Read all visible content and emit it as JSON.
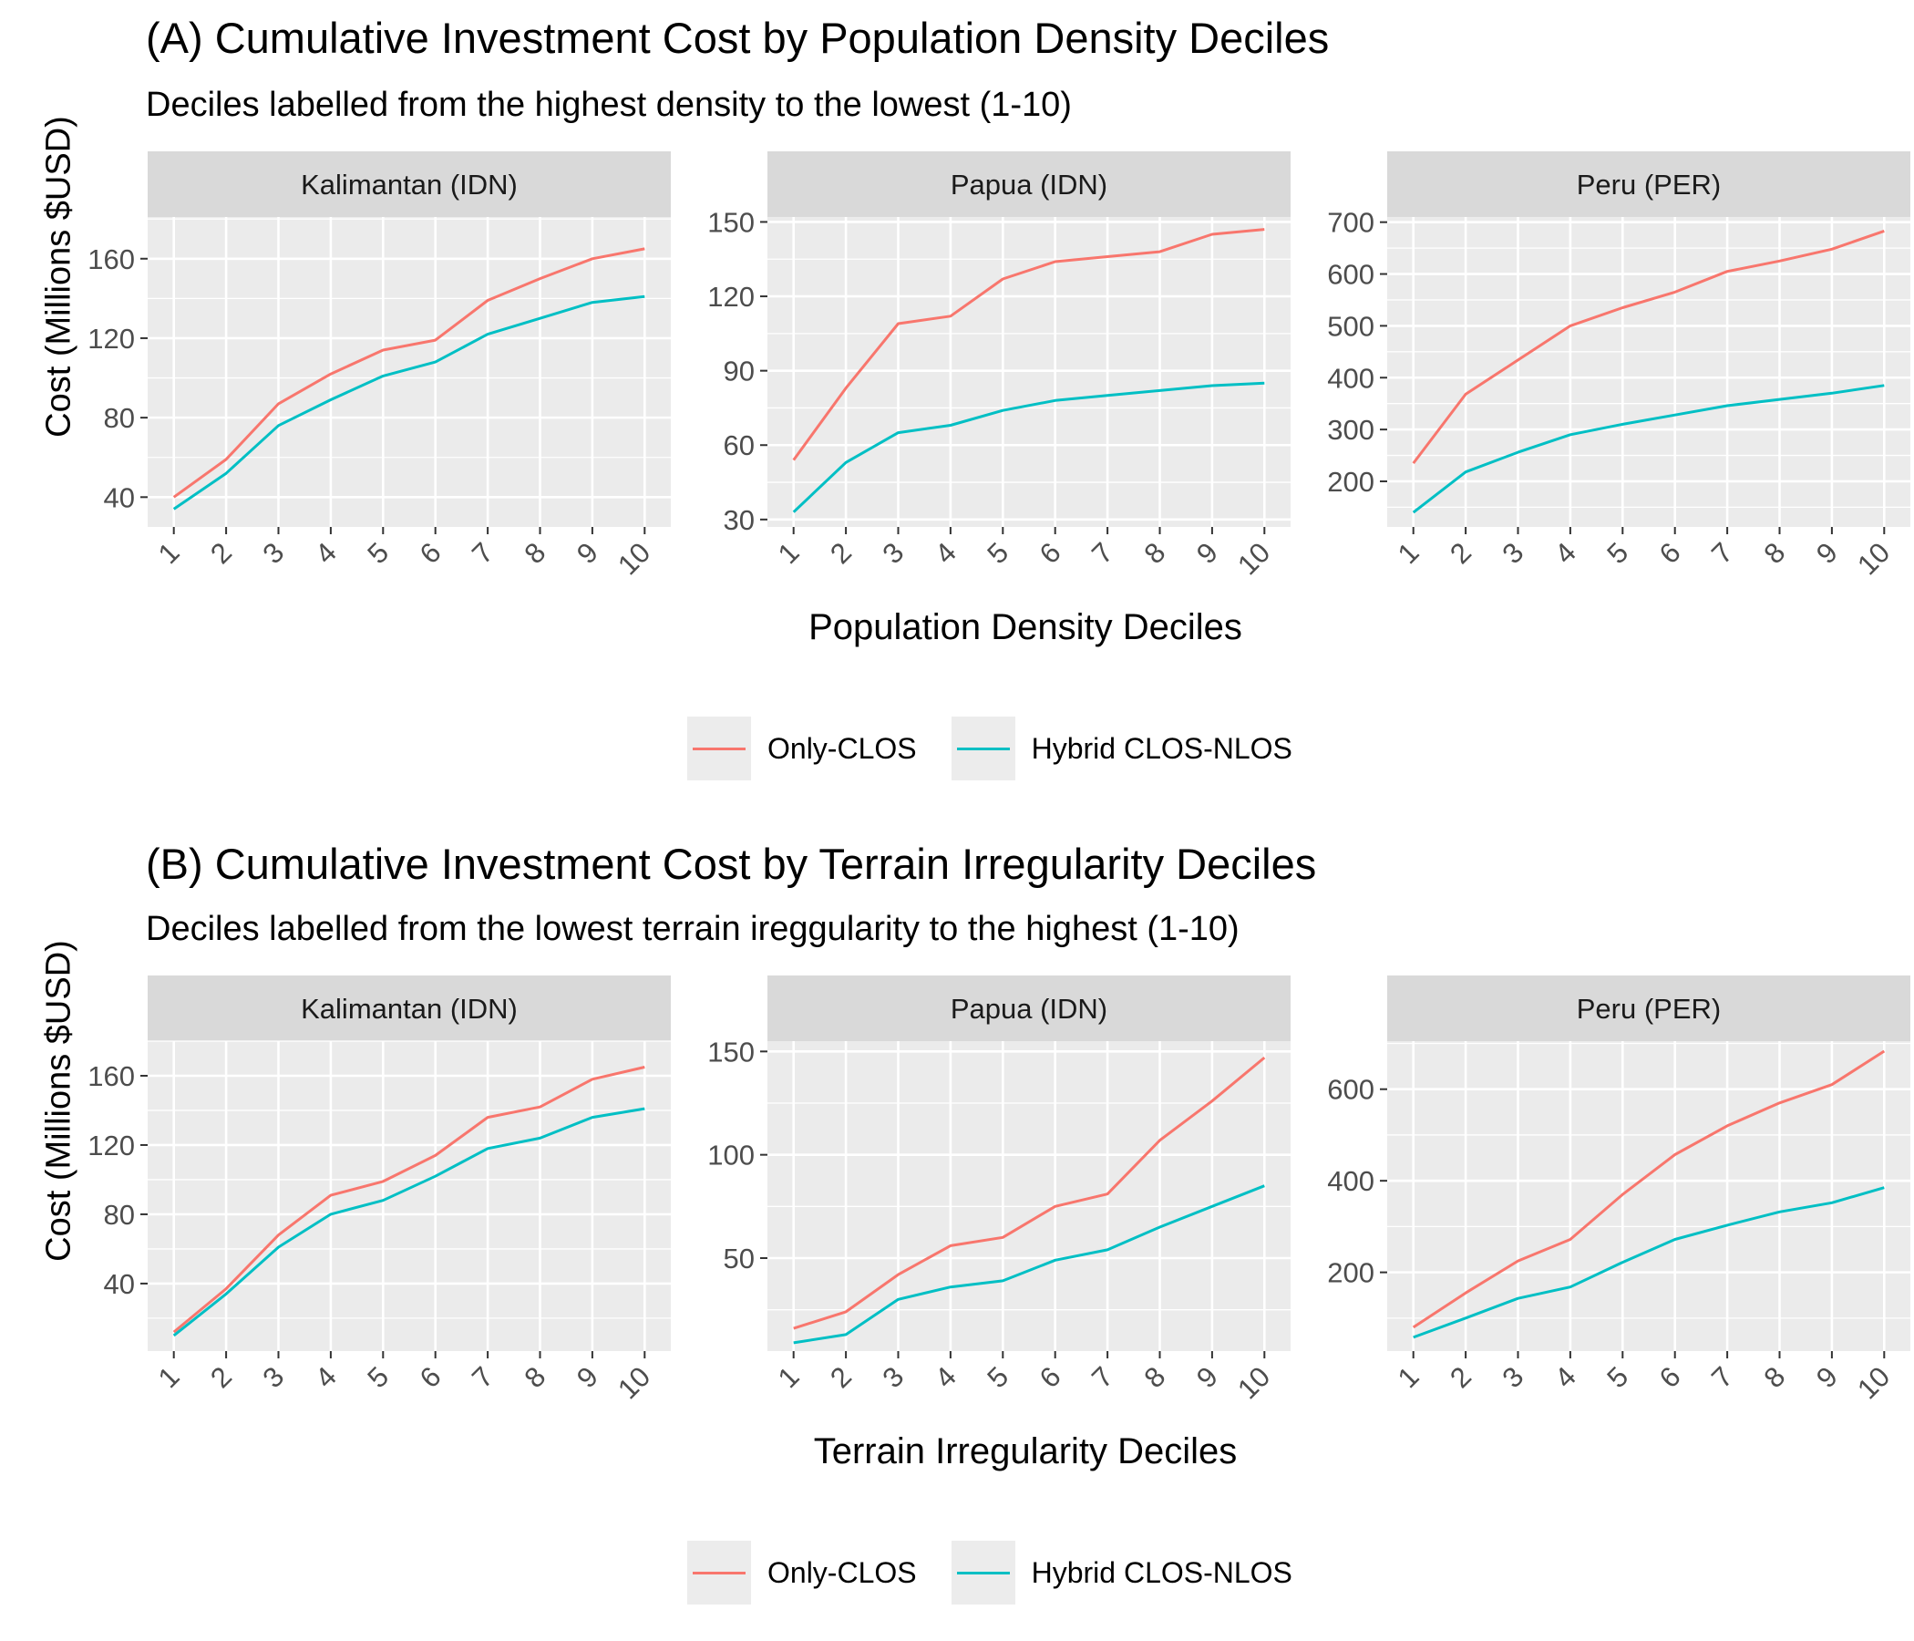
{
  "colors": {
    "only_clos": "#F8766D",
    "hybrid": "#00BFC4",
    "panel_bg": "#EBEBEB",
    "strip_bg": "#D9D9D9",
    "grid": "#FFFFFF",
    "tick_text": "#4D4D4D"
  },
  "sections": [
    {
      "title": "(A) Cumulative Investment Cost by Population Density Deciles",
      "subtitle": "Deciles labelled from the highest density to the lowest (1-10)",
      "ylabel": "Cost (Millions $USD)",
      "xlabel": "Population Density Deciles",
      "legend": {
        "items": [
          "Only-CLOS",
          "Hybrid CLOS-NLOS"
        ]
      }
    },
    {
      "title": "(B) Cumulative Investment Cost by Terrain Irregularity Deciles",
      "subtitle": "Deciles labelled from the lowest terrain ireggularity to the highest (1-10)",
      "ylabel": "Cost (Millions $USD)",
      "xlabel": "Terrain Irregularity Deciles",
      "legend": {
        "items": [
          "Only-CLOS",
          "Hybrid CLOS-NLOS"
        ]
      }
    }
  ],
  "chart_data": [
    {
      "type": "line",
      "panel": "Kalimantan (IDN)",
      "x": [
        1,
        2,
        3,
        4,
        5,
        6,
        7,
        8,
        9,
        10
      ],
      "ylim": [
        25,
        181
      ],
      "yticks": [
        40,
        80,
        120,
        160
      ],
      "series": [
        {
          "name": "Only-CLOS",
          "values": [
            40,
            59,
            87,
            102,
            114,
            119,
            139,
            150,
            160,
            165
          ]
        },
        {
          "name": "Hybrid CLOS-NLOS",
          "values": [
            34,
            52,
            76,
            89,
            101,
            108,
            122,
            130,
            138,
            141
          ]
        }
      ]
    },
    {
      "type": "line",
      "panel": "Papua (IDN)",
      "x": [
        1,
        2,
        3,
        4,
        5,
        6,
        7,
        8,
        9,
        10
      ],
      "ylim": [
        27,
        152
      ],
      "yticks": [
        30,
        60,
        90,
        120,
        150
      ],
      "series": [
        {
          "name": "Only-CLOS",
          "values": [
            54,
            83,
            109,
            112,
            127,
            134,
            136,
            138,
            145,
            147
          ]
        },
        {
          "name": "Hybrid CLOS-NLOS",
          "values": [
            33,
            53,
            65,
            68,
            74,
            78,
            80,
            82,
            84,
            85
          ]
        }
      ]
    },
    {
      "type": "line",
      "panel": "Peru (PER)",
      "x": [
        1,
        2,
        3,
        4,
        5,
        6,
        7,
        8,
        9,
        10
      ],
      "ylim": [
        112,
        710
      ],
      "yticks": [
        200,
        300,
        400,
        500,
        600,
        700
      ],
      "series": [
        {
          "name": "Only-CLOS",
          "values": [
            235,
            368,
            434,
            500,
            535,
            565,
            605,
            625,
            648,
            683
          ]
        },
        {
          "name": "Hybrid CLOS-NLOS",
          "values": [
            140,
            218,
            256,
            290,
            310,
            328,
            346,
            358,
            370,
            385
          ]
        }
      ]
    },
    {
      "type": "line",
      "panel": "Kalimantan (IDN)",
      "x": [
        1,
        2,
        3,
        4,
        5,
        6,
        7,
        8,
        9,
        10
      ],
      "ylim": [
        1,
        180
      ],
      "yticks": [
        40,
        80,
        120,
        160
      ],
      "series": [
        {
          "name": "Only-CLOS",
          "values": [
            12,
            37,
            68,
            91,
            99,
            114,
            136,
            142,
            158,
            165
          ]
        },
        {
          "name": "Hybrid CLOS-NLOS",
          "values": [
            10,
            34,
            61,
            80,
            88,
            102,
            118,
            124,
            136,
            141
          ]
        }
      ]
    },
    {
      "type": "line",
      "panel": "Papua (IDN)",
      "x": [
        1,
        2,
        3,
        4,
        5,
        6,
        7,
        8,
        9,
        10
      ],
      "ylim": [
        5,
        155
      ],
      "yticks": [
        50,
        100,
        150
      ],
      "series": [
        {
          "name": "Only-CLOS",
          "values": [
            16,
            24,
            42,
            56,
            60,
            75,
            81,
            107,
            126,
            147
          ]
        },
        {
          "name": "Hybrid CLOS-NLOS",
          "values": [
            9,
            13,
            30,
            36,
            39,
            49,
            54,
            65,
            75,
            85
          ]
        }
      ]
    },
    {
      "type": "line",
      "panel": "Peru (PER)",
      "x": [
        1,
        2,
        3,
        4,
        5,
        6,
        7,
        8,
        9,
        10
      ],
      "ylim": [
        28,
        705
      ],
      "yticks": [
        200,
        400,
        600
      ],
      "series": [
        {
          "name": "Only-CLOS",
          "values": [
            80,
            155,
            225,
            272,
            370,
            457,
            520,
            570,
            610,
            683
          ]
        },
        {
          "name": "Hybrid CLOS-NLOS",
          "values": [
            58,
            100,
            143,
            168,
            222,
            272,
            303,
            332,
            352,
            385
          ]
        }
      ]
    }
  ]
}
